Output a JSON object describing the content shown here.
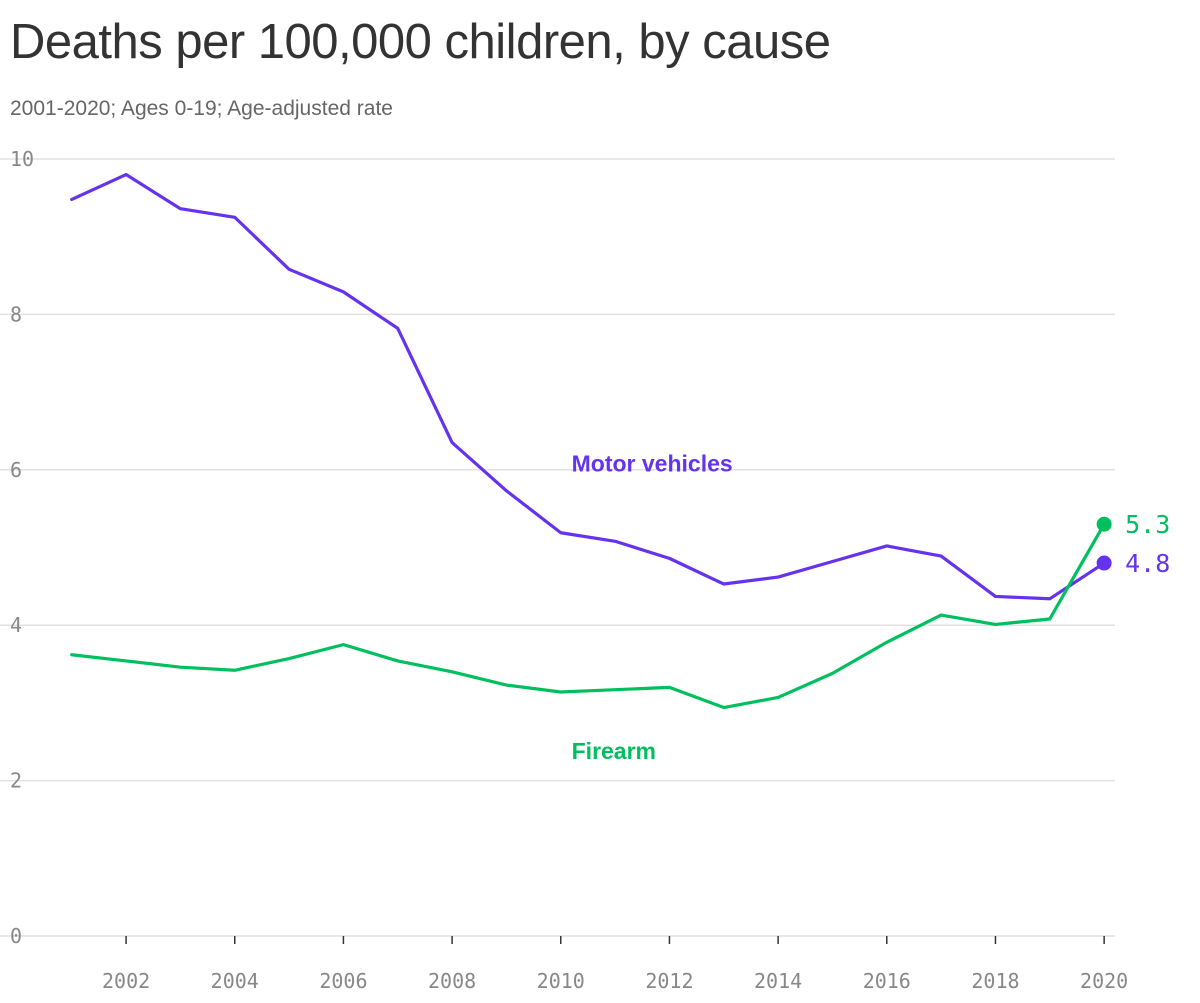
{
  "chart_data": {
    "type": "line",
    "title": "Deaths per 100,000 children, by cause",
    "subtitle": "2001-2020; Ages 0-19; Age-adjusted rate",
    "xlabel": "",
    "ylabel": "",
    "x": [
      2001,
      2002,
      2003,
      2004,
      2005,
      2006,
      2007,
      2008,
      2009,
      2010,
      2011,
      2012,
      2013,
      2014,
      2015,
      2016,
      2017,
      2018,
      2019,
      2020
    ],
    "xlim": [
      2000.6,
      2020.2
    ],
    "ylim": [
      0,
      10
    ],
    "x_ticks": [
      "2002",
      "2004",
      "2006",
      "2008",
      "2010",
      "2012",
      "2014",
      "2016",
      "2018",
      "2020"
    ],
    "y_ticks": [
      "0",
      "2",
      "4",
      "6",
      "8",
      "10"
    ],
    "grid": true,
    "series": [
      {
        "name": "Motor vehicles",
        "color": "#6533ee",
        "values": [
          9.48,
          9.8,
          9.36,
          9.25,
          8.58,
          8.29,
          7.82,
          6.35,
          5.73,
          5.19,
          5.08,
          4.86,
          4.53,
          4.62,
          4.82,
          5.02,
          4.89,
          4.37,
          4.34,
          4.8
        ],
        "end_label": "4.8"
      },
      {
        "name": "Firearm",
        "color": "#00bf5f",
        "values": [
          3.62,
          3.54,
          3.46,
          3.42,
          3.57,
          3.75,
          3.54,
          3.4,
          3.23,
          3.14,
          3.17,
          3.2,
          2.94,
          3.07,
          3.38,
          3.78,
          4.13,
          4.01,
          4.08,
          5.3
        ],
        "end_label": "5.3"
      }
    ]
  }
}
